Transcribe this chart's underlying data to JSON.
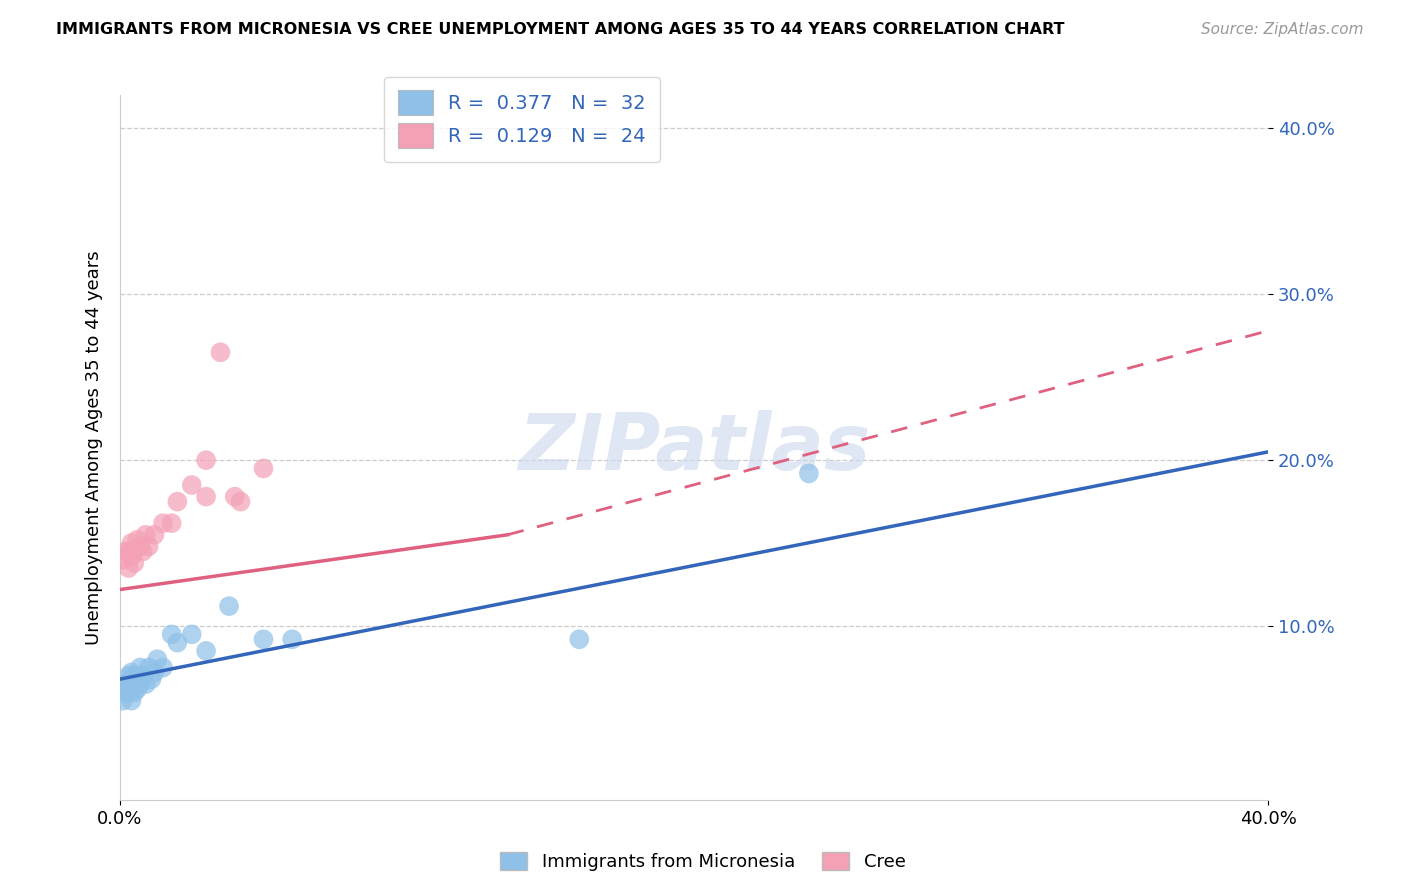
{
  "title": "IMMIGRANTS FROM MICRONESIA VS CREE UNEMPLOYMENT AMONG AGES 35 TO 44 YEARS CORRELATION CHART",
  "source": "Source: ZipAtlas.com",
  "ylabel": "Unemployment Among Ages 35 to 44 years",
  "xlim": [
    0.0,
    0.4
  ],
  "ylim": [
    -0.005,
    0.42
  ],
  "y_tick_vals": [
    0.1,
    0.2,
    0.3,
    0.4
  ],
  "y_tick_labels": [
    "10.0%",
    "20.0%",
    "30.0%",
    "40.0%"
  ],
  "x_tick_vals": [
    0.0,
    0.4
  ],
  "x_tick_labels": [
    "0.0%",
    "40.0%"
  ],
  "legend_label1": "R =  0.377   N =  32",
  "legend_label2": "R =  0.129   N =  24",
  "color_blue": "#8ec0e8",
  "color_pink": "#f4a0b5",
  "line_color_blue": "#3366bb",
  "line_color_pink": "#e06080",
  "watermark": "ZIPatlas",
  "blue_line_x0": 0.0,
  "blue_line_y0": 0.068,
  "blue_line_x1": 0.4,
  "blue_line_y1": 0.205,
  "pink_line_solid_x0": 0.0,
  "pink_line_solid_y0": 0.122,
  "pink_line_solid_x1": 0.135,
  "pink_line_solid_y1": 0.155,
  "pink_line_dash_x0": 0.135,
  "pink_line_dash_y0": 0.155,
  "pink_line_dash_x1": 0.4,
  "pink_line_dash_y1": 0.278,
  "blue_x": [
    0.001,
    0.002,
    0.002,
    0.003,
    0.003,
    0.003,
    0.004,
    0.004,
    0.004,
    0.005,
    0.005,
    0.005,
    0.006,
    0.006,
    0.007,
    0.007,
    0.008,
    0.009,
    0.01,
    0.011,
    0.012,
    0.013,
    0.015,
    0.018,
    0.02,
    0.025,
    0.03,
    0.038,
    0.05,
    0.06,
    0.16,
    0.24
  ],
  "blue_y": [
    0.055,
    0.06,
    0.065,
    0.06,
    0.065,
    0.07,
    0.055,
    0.068,
    0.072,
    0.06,
    0.065,
    0.07,
    0.062,
    0.068,
    0.065,
    0.075,
    0.07,
    0.065,
    0.075,
    0.068,
    0.072,
    0.08,
    0.075,
    0.095,
    0.09,
    0.095,
    0.085,
    0.112,
    0.092,
    0.092,
    0.092,
    0.192
  ],
  "pink_x": [
    0.001,
    0.002,
    0.003,
    0.003,
    0.004,
    0.004,
    0.005,
    0.005,
    0.006,
    0.007,
    0.008,
    0.009,
    0.01,
    0.012,
    0.015,
    0.018,
    0.02,
    0.025,
    0.03,
    0.03,
    0.035,
    0.04,
    0.042,
    0.05
  ],
  "pink_y": [
    0.14,
    0.145,
    0.135,
    0.145,
    0.15,
    0.142,
    0.138,
    0.145,
    0.152,
    0.148,
    0.145,
    0.155,
    0.148,
    0.155,
    0.162,
    0.162,
    0.175,
    0.185,
    0.2,
    0.178,
    0.265,
    0.178,
    0.175,
    0.195
  ]
}
